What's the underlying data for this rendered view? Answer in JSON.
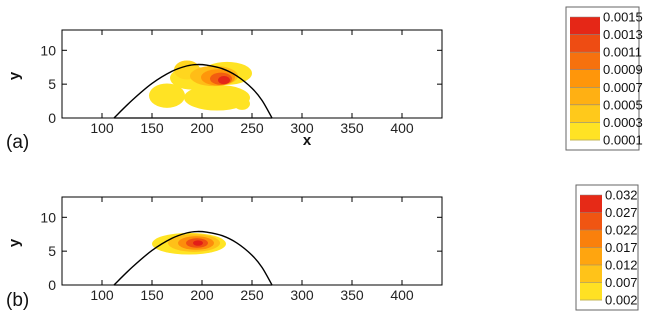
{
  "chart_data": [
    {
      "type": "heatmap",
      "panel_label": "(a)",
      "xlabel": "x",
      "ylabel": "y",
      "xlim": [
        60,
        440
      ],
      "ylim": [
        0,
        13
      ],
      "xticks": [
        "100",
        "150",
        "200",
        "250",
        "300",
        "350",
        "400"
      ],
      "xtick_values": [
        100,
        150,
        200,
        250,
        300,
        350,
        400
      ],
      "yticks": [
        "0",
        "5",
        "10"
      ],
      "ytick_values": [
        0,
        5,
        10
      ],
      "colorbar": {
        "labels": [
          "0.0015",
          "0.0013",
          "0.0011",
          "0.0009",
          "0.0007",
          "0.0005",
          "0.0003",
          "0.0001"
        ],
        "min": 0.0001,
        "max": 0.0015
      },
      "boundary_curve": {
        "x": [
          112,
          130,
          150,
          170,
          185,
          195,
          205,
          220,
          235,
          250,
          260,
          270
        ],
        "y": [
          0,
          2.6,
          5.1,
          6.9,
          7.7,
          7.9,
          7.8,
          7.3,
          6.2,
          4.4,
          2.6,
          0
        ]
      },
      "features": [
        {
          "cx": 165,
          "cy": 3.3,
          "rx": 18,
          "ry": 1.8,
          "value": 0.0002
        },
        {
          "cx": 215,
          "cy": 3.0,
          "rx": 33,
          "ry": 1.9,
          "value": 0.0002
        },
        {
          "cx": 240,
          "cy": 2.1,
          "rx": 8,
          "ry": 0.9,
          "value": 0.0002
        },
        {
          "cx": 190,
          "cy": 5.9,
          "rx": 22,
          "ry": 1.7,
          "value": 0.0002
        },
        {
          "cx": 225,
          "cy": 6.6,
          "rx": 25,
          "ry": 1.7,
          "value": 0.0002
        },
        {
          "cx": 185,
          "cy": 7.1,
          "rx": 13,
          "ry": 1.4,
          "value": 0.0003
        },
        {
          "cx": 212,
          "cy": 6.2,
          "rx": 24,
          "ry": 1.5,
          "value": 0.0005
        },
        {
          "cx": 216,
          "cy": 6.0,
          "rx": 17,
          "ry": 1.2,
          "value": 0.0008
        },
        {
          "cx": 219,
          "cy": 5.8,
          "rx": 11,
          "ry": 0.9,
          "value": 0.0011
        },
        {
          "cx": 222,
          "cy": 5.6,
          "rx": 6,
          "ry": 0.6,
          "value": 0.0014
        }
      ]
    },
    {
      "type": "heatmap",
      "panel_label": "(b)",
      "xlabel": "x",
      "ylabel": "y",
      "xlim": [
        60,
        440
      ],
      "ylim": [
        0,
        13
      ],
      "xticks": [
        "100",
        "150",
        "200",
        "250",
        "300",
        "350",
        "400"
      ],
      "xtick_values": [
        100,
        150,
        200,
        250,
        300,
        350,
        400
      ],
      "yticks": [
        "0",
        "5",
        "10"
      ],
      "ytick_values": [
        0,
        5,
        10
      ],
      "colorbar": {
        "labels": [
          "0.032",
          "0.027",
          "0.022",
          "0.017",
          "0.012",
          "0.007",
          "0.002"
        ],
        "min": 0.002,
        "max": 0.032
      },
      "boundary_curve": {
        "x": [
          112,
          130,
          150,
          170,
          185,
          195,
          205,
          220,
          235,
          250,
          260,
          270
        ],
        "y": [
          0,
          2.6,
          5.1,
          6.9,
          7.7,
          7.9,
          7.8,
          7.3,
          6.2,
          4.4,
          2.6,
          0
        ]
      },
      "features": [
        {
          "cx": 187,
          "cy": 6.1,
          "rx": 37,
          "ry": 1.6,
          "value": 0.004
        },
        {
          "cx": 192,
          "cy": 6.2,
          "rx": 26,
          "ry": 1.3,
          "value": 0.01
        },
        {
          "cx": 194,
          "cy": 6.2,
          "rx": 18,
          "ry": 1.0,
          "value": 0.018
        },
        {
          "cx": 195,
          "cy": 6.2,
          "rx": 11,
          "ry": 0.7,
          "value": 0.025
        },
        {
          "cx": 196,
          "cy": 6.2,
          "rx": 5,
          "ry": 0.4,
          "value": 0.031
        }
      ]
    }
  ]
}
